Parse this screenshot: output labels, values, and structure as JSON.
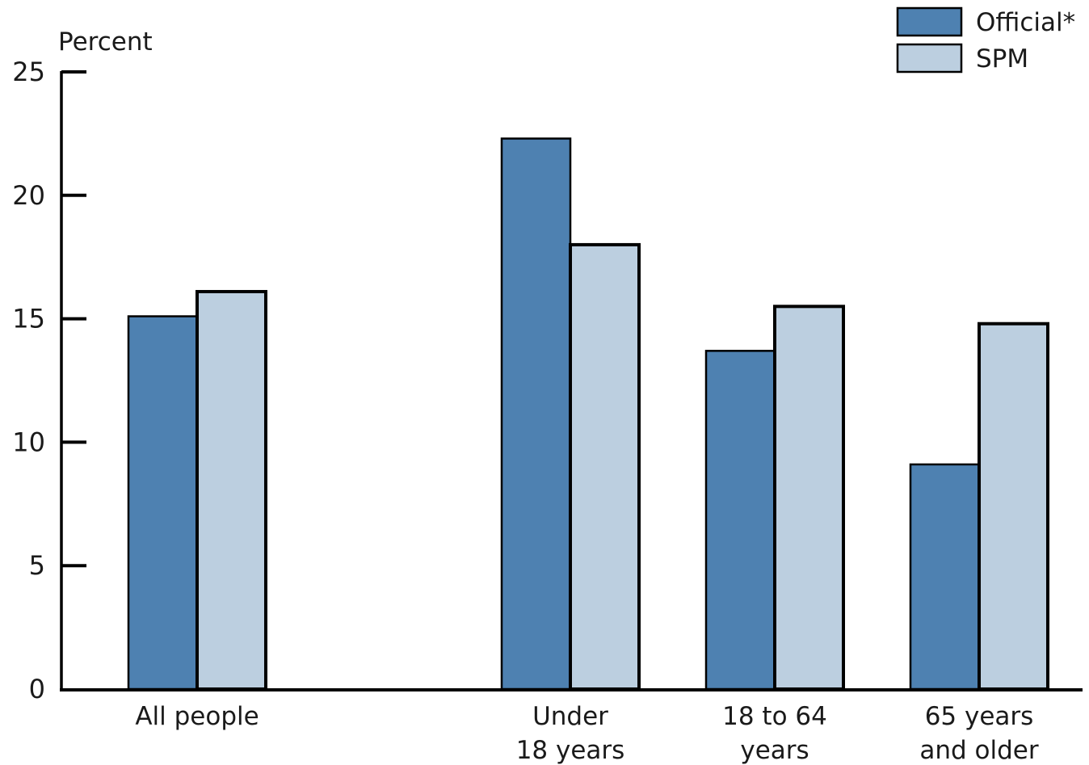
{
  "chart_data": {
    "type": "bar",
    "ylabel": "Percent",
    "ylim": [
      0,
      25
    ],
    "yticks": [
      0,
      5,
      10,
      15,
      20,
      25
    ],
    "categories": [
      [
        "All people"
      ],
      [
        "Under",
        "18 years"
      ],
      [
        "18 to 64",
        "years"
      ],
      [
        "65 years",
        "and older"
      ]
    ],
    "series": [
      {
        "name": "Official*",
        "color": "#4e81b1",
        "values": [
          15.1,
          22.3,
          13.7,
          9.1
        ]
      },
      {
        "name": "SPM",
        "color": "#bccfe0",
        "values": [
          16.1,
          18.0,
          15.5,
          14.8
        ]
      }
    ],
    "legend_position": "top-right",
    "grid": false
  }
}
